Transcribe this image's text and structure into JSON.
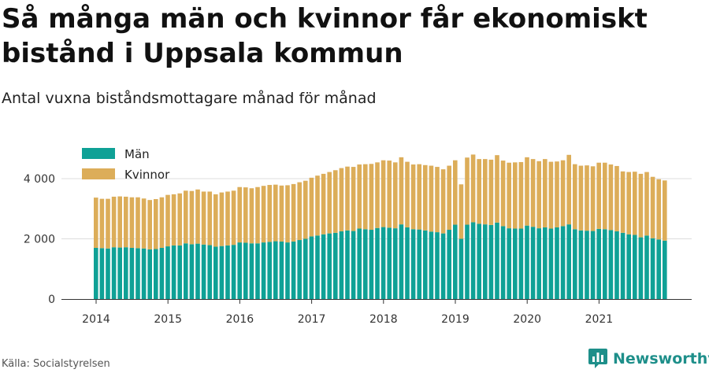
{
  "title": "Så många män och kvinnor får ekonomiskt bistånd i Uppsala kommun",
  "subtitle": "Antal vuxna biståndsmottagare månad för månad",
  "source": "Källa: Socialstyrelsen",
  "brand": "Newsworthy",
  "colors": {
    "men": "#0fa196",
    "women": "#dcad59",
    "grid": "#dddddd",
    "axis": "#333333",
    "text": "#333333",
    "brand": "#1e8f8a"
  },
  "chart_data": {
    "type": "bar",
    "stacked": true,
    "title": "Så många män och kvinnor får ekonomiskt bistånd i Uppsala kommun",
    "subtitle": "Antal vuxna biståndsmottagare månad för månad",
    "xlabel": "",
    "ylabel": "",
    "ylim": [
      0,
      5200
    ],
    "yticks": [
      0,
      2000,
      4000
    ],
    "ytick_labels": [
      "0",
      "2 000",
      "4 000"
    ],
    "xticks": [
      "2014",
      "2015",
      "2016",
      "2017",
      "2018",
      "2019",
      "2020",
      "2021"
    ],
    "start": "2014-01",
    "legend": [
      "Män",
      "Kvinnor"
    ],
    "legend_position": "top-left",
    "series": [
      {
        "name": "Män",
        "values": [
          1700,
          1690,
          1680,
          1720,
          1710,
          1720,
          1700,
          1690,
          1680,
          1650,
          1660,
          1700,
          1750,
          1780,
          1780,
          1850,
          1820,
          1840,
          1810,
          1790,
          1740,
          1760,
          1780,
          1800,
          1880,
          1870,
          1850,
          1850,
          1880,
          1900,
          1920,
          1910,
          1880,
          1910,
          1960,
          2000,
          2080,
          2110,
          2150,
          2180,
          2200,
          2250,
          2280,
          2260,
          2340,
          2320,
          2300,
          2360,
          2390,
          2370,
          2350,
          2480,
          2380,
          2320,
          2310,
          2280,
          2240,
          2220,
          2180,
          2300,
          2470,
          2000,
          2470,
          2550,
          2500,
          2480,
          2460,
          2540,
          2420,
          2350,
          2340,
          2340,
          2440,
          2400,
          2350,
          2380,
          2340,
          2380,
          2420,
          2480,
          2320,
          2280,
          2270,
          2260,
          2330,
          2320,
          2290,
          2250,
          2200,
          2150,
          2130,
          2050,
          2110,
          2020,
          1980,
          1940
        ]
      },
      {
        "name": "Kvinnor",
        "values": [
          1670,
          1640,
          1650,
          1680,
          1700,
          1680,
          1680,
          1690,
          1660,
          1640,
          1660,
          1680,
          1710,
          1700,
          1730,
          1750,
          1770,
          1800,
          1760,
          1780,
          1740,
          1780,
          1790,
          1800,
          1840,
          1840,
          1830,
          1870,
          1880,
          1890,
          1880,
          1860,
          1900,
          1910,
          1920,
          1930,
          1950,
          1990,
          2010,
          2040,
          2080,
          2100,
          2120,
          2130,
          2130,
          2160,
          2190,
          2180,
          2220,
          2230,
          2190,
          2230,
          2180,
          2150,
          2170,
          2170,
          2190,
          2170,
          2130,
          2130,
          2140,
          1810,
          2230,
          2250,
          2150,
          2170,
          2170,
          2240,
          2180,
          2180,
          2200,
          2210,
          2270,
          2250,
          2230,
          2270,
          2220,
          2190,
          2190,
          2310,
          2160,
          2150,
          2170,
          2150,
          2200,
          2210,
          2180,
          2170,
          2040,
          2070,
          2100,
          2110,
          2110,
          2040,
          2000,
          2000
        ]
      }
    ]
  }
}
